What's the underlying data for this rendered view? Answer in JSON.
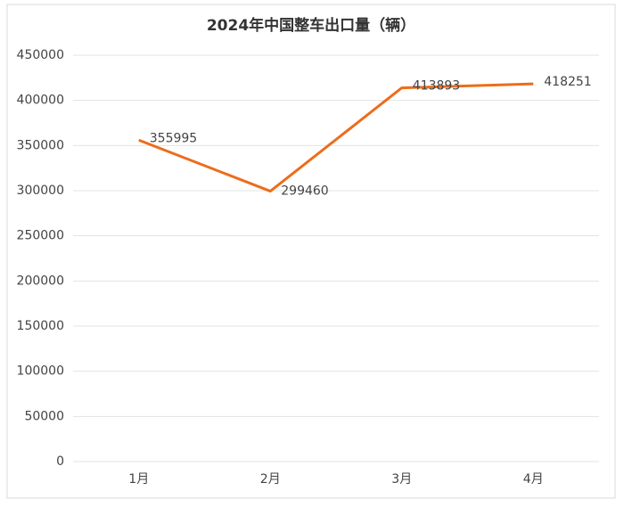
{
  "chart_data": {
    "type": "line",
    "title": "2024年中国整车出口量（辆）",
    "categories": [
      "1月",
      "2月",
      "3月",
      "4月"
    ],
    "series": [
      {
        "name": "整车出口量",
        "color": "#ec6d1b",
        "values": [
          355995,
          299460,
          413893,
          418251
        ]
      }
    ],
    "ylim": [
      0,
      450000
    ],
    "yticks": [
      0,
      50000,
      100000,
      150000,
      200000,
      250000,
      300000,
      350000,
      400000,
      450000
    ],
    "grid": true,
    "data_labels": true
  }
}
